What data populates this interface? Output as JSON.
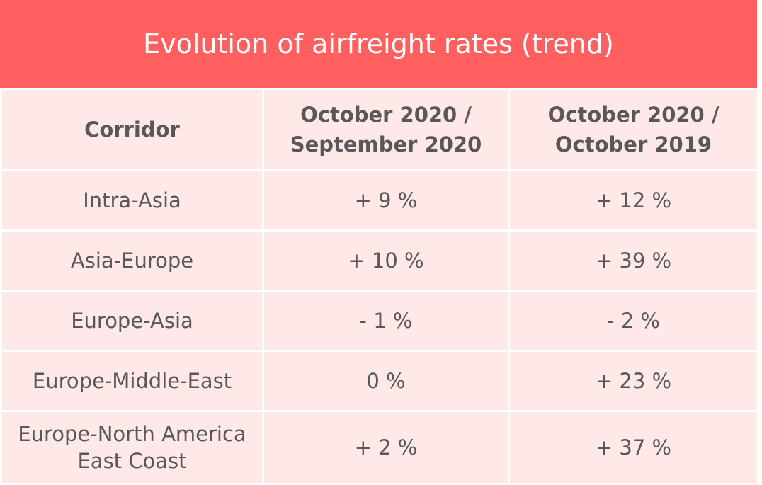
{
  "chart_data": {
    "type": "table",
    "title": "Evolution of airfreight rates (trend)",
    "columns": [
      "Corridor",
      "October 2020 / September 2020",
      "October 2020 / October 2019"
    ],
    "rows": [
      [
        "Intra-Asia",
        "+ 9 %",
        "+ 12 %"
      ],
      [
        "Asia-Europe",
        "+ 10 %",
        "+ 39 %"
      ],
      [
        "Europe-Asia",
        "- 1 %",
        "- 2 %"
      ],
      [
        "Europe-Middle-East",
        "0 %",
        "+ 23 %"
      ],
      [
        "Europe-North America East Coast",
        "+ 2 %",
        "+ 37 %"
      ]
    ]
  },
  "colors": {
    "header": "#ff5f5f",
    "cell": "#ffe8e8",
    "text": "#585858",
    "grid": "#ffffff"
  }
}
